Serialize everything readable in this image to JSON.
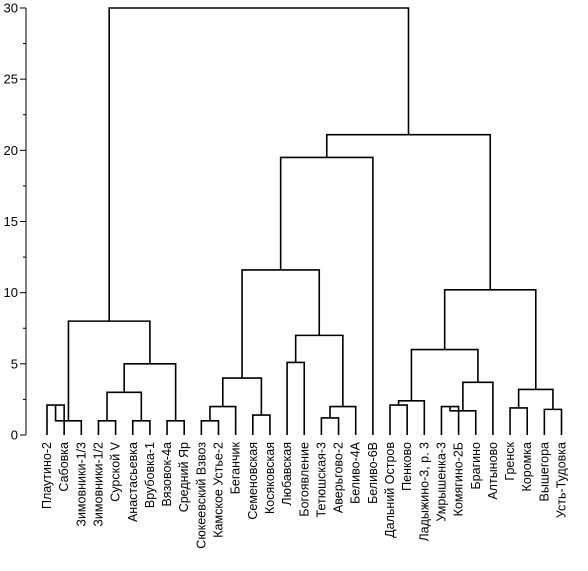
{
  "chart_data": {
    "type": "dendrogram",
    "ylim": [
      0,
      30
    ],
    "y_ticks": [
      0,
      5,
      10,
      15,
      20,
      25,
      30
    ],
    "grid": false,
    "leaves": [
      "Плаутино-2",
      "Сабовка",
      "Зимовники-1/3",
      "Зимовники-1/2",
      "Сурской V",
      "Анастасьевка",
      "Врубовка-1",
      "Вязовок-4а",
      "Средний Яр",
      "Сюкеевский Взвоз",
      "Камское Устье-2",
      "Беганчик",
      "Семеновская",
      "Косяковская",
      "Любавская",
      "Богоявление",
      "Тетюшская-3",
      "Аверьгово-2",
      "Беливо-4А",
      "Беливо-6В",
      "Дальний Остров",
      "Пенково",
      "Ладыжино-3, р. 3",
      "Умрышенка-3",
      "Комягино-2Б",
      "Брагино",
      "Алтыново",
      "Гренск",
      "Коромка",
      "Вышегора",
      "Усть-Тудовка"
    ],
    "merges": [
      {
        "left": {
          "leaf": 0
        },
        "right": {
          "leaf": 1
        },
        "height": 2.1
      },
      {
        "left": {
          "node": 0
        },
        "right": {
          "leaf": 2
        },
        "height": 1.0
      },
      {
        "left": {
          "leaf": 3
        },
        "right": {
          "leaf": 4
        },
        "height": 1.0
      },
      {
        "left": {
          "leaf": 5
        },
        "right": {
          "leaf": 6
        },
        "height": 1.0
      },
      {
        "left": {
          "node": 2
        },
        "right": {
          "node": 3
        },
        "height": 3.0
      },
      {
        "left": {
          "leaf": 7
        },
        "right": {
          "leaf": 8
        },
        "height": 1.0
      },
      {
        "left": {
          "node": 4
        },
        "right": {
          "node": 5
        },
        "height": 5.0
      },
      {
        "left": {
          "node": 1
        },
        "right": {
          "node": 6
        },
        "height": 8.0
      },
      {
        "left": {
          "leaf": 9
        },
        "right": {
          "leaf": 10
        },
        "height": 1.0
      },
      {
        "left": {
          "node": 8
        },
        "right": {
          "leaf": 11
        },
        "height": 2.0
      },
      {
        "left": {
          "leaf": 12
        },
        "right": {
          "leaf": 13
        },
        "height": 1.4
      },
      {
        "left": {
          "node": 9
        },
        "right": {
          "node": 10
        },
        "height": 4.0
      },
      {
        "left": {
          "leaf": 14
        },
        "right": {
          "leaf": 15
        },
        "height": 5.1
      },
      {
        "left": {
          "leaf": 16
        },
        "right": {
          "leaf": 17
        },
        "height": 1.2
      },
      {
        "left": {
          "node": 13
        },
        "right": {
          "leaf": 18
        },
        "height": 2.0
      },
      {
        "left": {
          "node": 12
        },
        "right": {
          "node": 14
        },
        "height": 7.0
      },
      {
        "left": {
          "node": 11
        },
        "right": {
          "node": 15
        },
        "height": 11.6
      },
      {
        "left": {
          "node": 16
        },
        "right": {
          "leaf": 19
        },
        "height": 19.5
      },
      {
        "left": {
          "leaf": 20
        },
        "right": {
          "leaf": 21
        },
        "height": 2.1
      },
      {
        "left": {
          "node": 18
        },
        "right": {
          "leaf": 22
        },
        "height": 2.4
      },
      {
        "left": {
          "leaf": 23
        },
        "right": {
          "leaf": 24
        },
        "height": 2.0
      },
      {
        "left": {
          "node": 20
        },
        "right": {
          "leaf": 25
        },
        "height": 1.7
      },
      {
        "left": {
          "node": 21
        },
        "right": {
          "leaf": 26
        },
        "height": 3.7
      },
      {
        "left": {
          "node": 19
        },
        "right": {
          "node": 22
        },
        "height": 6.0
      },
      {
        "left": {
          "leaf": 27
        },
        "right": {
          "leaf": 28
        },
        "height": 1.9
      },
      {
        "left": {
          "leaf": 29
        },
        "right": {
          "leaf": 30
        },
        "height": 1.8
      },
      {
        "left": {
          "node": 24
        },
        "right": {
          "node": 25
        },
        "height": 3.2
      },
      {
        "left": {
          "node": 23
        },
        "right": {
          "node": 26
        },
        "height": 10.2
      },
      {
        "left": {
          "node": 17
        },
        "right": {
          "node": 27
        },
        "height": 21.1
      },
      {
        "left": {
          "node": 7
        },
        "right": {
          "node": 28
        },
        "height": 30.0
      }
    ]
  }
}
